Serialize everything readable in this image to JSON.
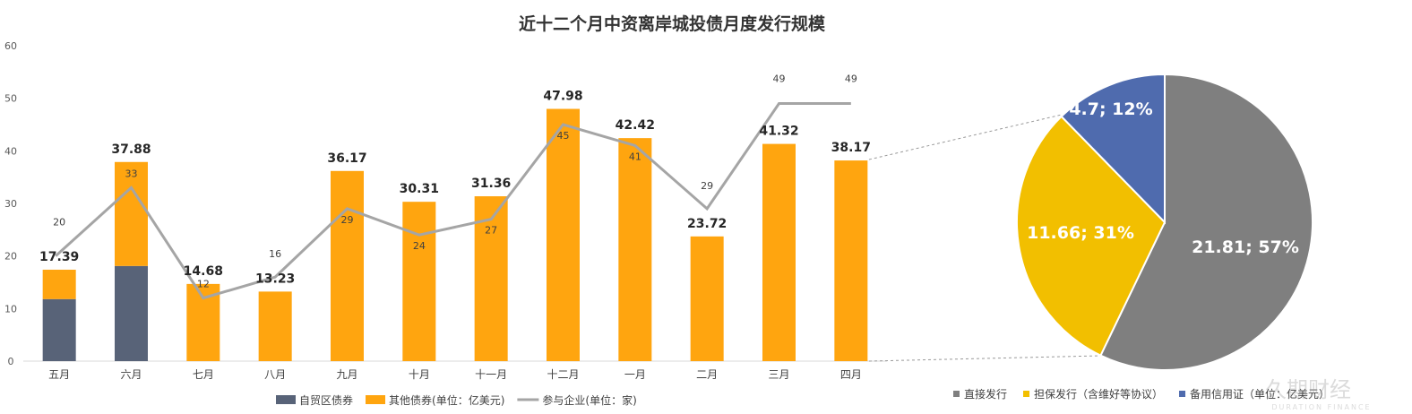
{
  "chart_data": [
    {
      "type": "bar+line",
      "title": "近十二个月中资离岸城投债月度发行规模",
      "categories": [
        "五月",
        "六月",
        "七月",
        "八月",
        "九月",
        "十月",
        "十一月",
        "十二月",
        "一月",
        "二月",
        "三月",
        "四月"
      ],
      "ylim": [
        0,
        60
      ],
      "yticks": [
        0,
        10,
        20,
        30,
        40,
        50,
        60
      ],
      "series": [
        {
          "name": "自贸区债券",
          "type": "bar",
          "color": "#586378",
          "values": [
            11.8,
            18.1,
            0,
            0,
            0,
            0,
            0,
            0,
            0,
            0,
            0,
            0
          ]
        },
        {
          "name": "其他债券(单位：亿美元)",
          "type": "bar",
          "color": "#FFA50F",
          "values": [
            5.59,
            19.78,
            14.68,
            13.23,
            36.17,
            30.31,
            31.36,
            47.98,
            42.42,
            23.72,
            41.32,
            38.17
          ]
        },
        {
          "name": "参与企业(单位：家)",
          "type": "line",
          "color": "#A5A5A5",
          "values": [
            20,
            33,
            12,
            16,
            29,
            24,
            27,
            45,
            41,
            29,
            49,
            49
          ]
        }
      ],
      "totals": [
        "17.39",
        "37.88",
        "14.68",
        "13.23",
        "36.17",
        "30.31",
        "31.36",
        "47.98",
        "42.42",
        "23.72",
        "41.32",
        "38.17"
      ],
      "legend": "bottom"
    },
    {
      "type": "pie",
      "labels": [
        "直接发行",
        "担保发行（含维好等协议）",
        "备用信用证（单位：亿美元）"
      ],
      "values": [
        21.81,
        11.66,
        4.7
      ],
      "data_labels": [
        "21.81; 57%",
        "11.66; 31%",
        "4.7; 12%"
      ],
      "colors": [
        "#7F7F7F",
        "#F2BF00",
        "#4F6BAE"
      ],
      "legend": "bottom"
    }
  ],
  "watermark": {
    "cn": "久期财经",
    "en": "DURATION FINANCE"
  }
}
